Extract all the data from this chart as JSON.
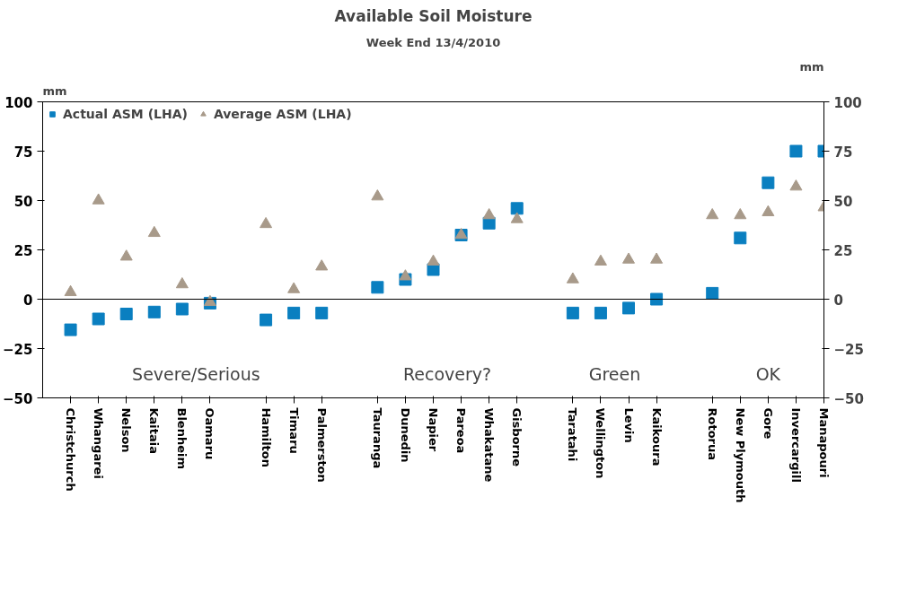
{
  "chart_data": {
    "type": "scatter",
    "title": "Available Soil Moisture",
    "subtitle": "Week End 13/4/2010",
    "ylabel": "mm",
    "y2label": "mm",
    "categories": [
      "Christchurch",
      "Whangarei",
      "Nelson",
      "Kaitaia",
      "Blenheim",
      "Oamaru",
      null,
      "Hamilton",
      "Timaru",
      "Palmerston",
      null,
      "Tauranga",
      "Dunedin",
      "Napier",
      "Pareoa",
      "Whakatane",
      "Gisborne",
      null,
      "Taratahi",
      "Wellington",
      "Levin",
      "Kaikoura",
      null,
      "Rotorua",
      "New Plymouth",
      "Gore",
      "Invercargill",
      "Manapouri"
    ],
    "series": [
      {
        "name": "Actual ASM (LHA)",
        "color": "#0a7fc0",
        "marker": "square",
        "values": [
          -15.5,
          -10,
          -7.5,
          -6.5,
          -5,
          -2,
          null,
          -10.5,
          -7,
          -7,
          null,
          6,
          10,
          15,
          32.5,
          38.5,
          46,
          null,
          -7,
          -7,
          -4.5,
          0,
          null,
          3,
          31,
          59,
          75,
          75
        ]
      },
      {
        "name": "Average ASM (LHA)",
        "color": "#a89a8a",
        "marker": "triangle",
        "values": [
          3.5,
          50,
          21.5,
          33.5,
          7.5,
          -1.5,
          null,
          38,
          5,
          16.5,
          null,
          52,
          11.5,
          19,
          32.5,
          42.5,
          40.5,
          null,
          10,
          19,
          20,
          20,
          null,
          42.5,
          42.5,
          44,
          57,
          46.5
        ]
      }
    ],
    "ylim": [
      -50,
      100
    ],
    "yticks": [
      -50,
      -25,
      0,
      25,
      50,
      75,
      100
    ],
    "y2lim": [
      -50,
      100
    ],
    "y2ticks": [
      -50,
      -25,
      0,
      25,
      50,
      75,
      100
    ],
    "ref_lines": [
      {
        "axis": "y",
        "value": 0,
        "color": "#000000"
      }
    ],
    "annotations": [
      "Severe/Serious",
      "Recovery?",
      "Green",
      "OK"
    ],
    "grid": false,
    "legend": "top left"
  }
}
